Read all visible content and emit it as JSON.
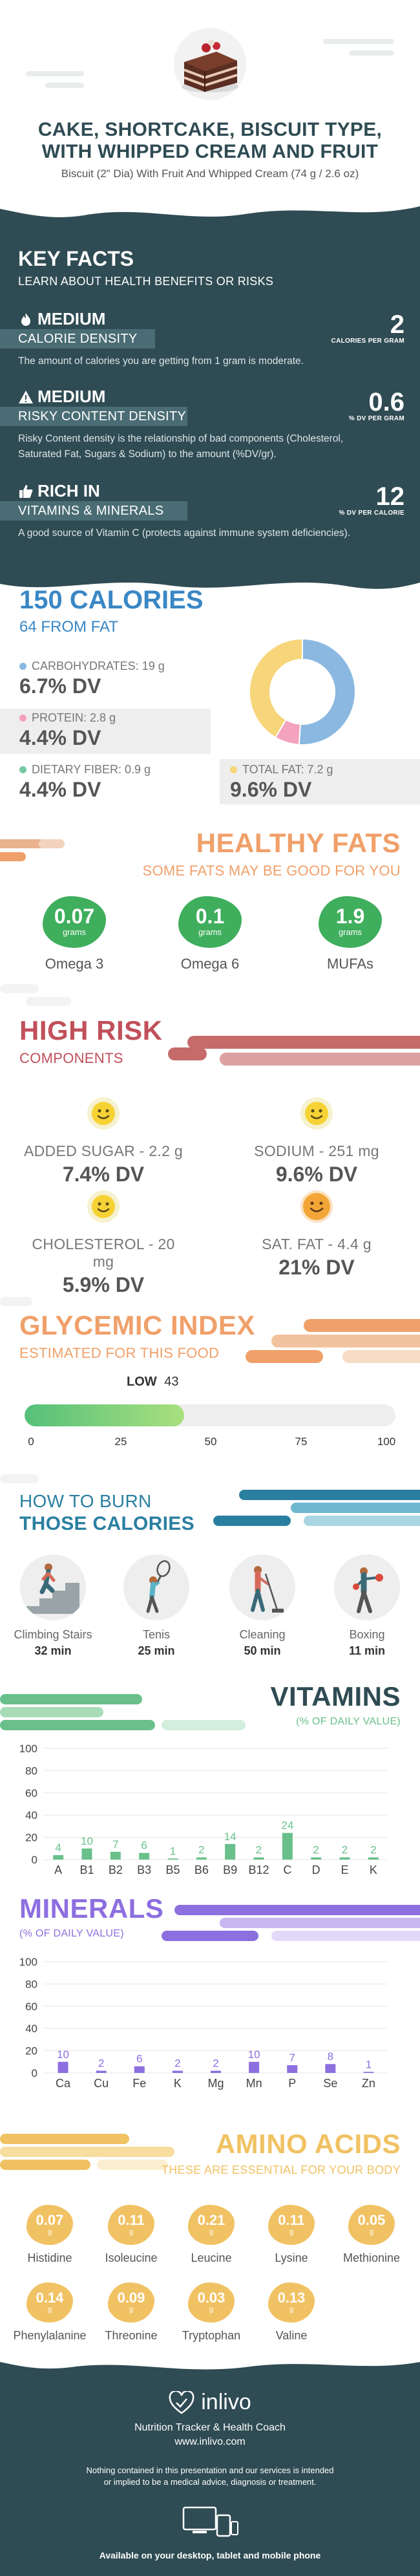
{
  "header": {
    "title_line1": "CAKE, SHORTCAKE, BISCUIT TYPE,",
    "title_line2": "WITH WHIPPED CREAM AND FRUIT",
    "subtitle": "Biscuit (2\" Dia) With Fruit And Whipped Cream (74 g / 2.6 oz)"
  },
  "key_facts": {
    "title": "KEY FACTS",
    "subtitle": "LEARN ABOUT HEALTH BENEFITS OR RISKS",
    "items": [
      {
        "level": "MEDIUM",
        "label": "CALORIE DENSITY",
        "value": "2",
        "unit": "CALORIES PER GRAM",
        "text": "The amount of calories you are getting from 1 gram is moderate.",
        "icon": "flame-icon"
      },
      {
        "level": "MEDIUM",
        "label": "RISKY CONTENT DENSITY",
        "value": "0.6",
        "unit": "% DV PER GRAM",
        "text": "Risky Content density is the relationship of bad components (Cholesterol, Saturated Fat, Sugars & Sodium) to the amount (%DV/gr).",
        "icon": "warning-icon"
      },
      {
        "level": "RICH  IN",
        "label": "VITAMINS & MINERALS",
        "value": "12",
        "unit": "% DV PER CALORIE",
        "text": "A good source of Vitamin C (protects against immune system deficiencies).",
        "icon": "thumbs-up-icon"
      }
    ]
  },
  "calories": {
    "title": "150 CALORIES",
    "subtitle": "64 FROM FAT",
    "nutrients": [
      {
        "label": "CARBOHYDRATES: 19 g",
        "dv": "6.7% DV",
        "color": "#8ab8e0"
      },
      {
        "label": "PROTEIN: 2.8 g",
        "dv": "4.4% DV",
        "color": "#f4a3bf"
      },
      {
        "label": "DIETARY FIBER: 0.9 g",
        "dv": "4.4% DV",
        "color": "#76c8a3"
      },
      {
        "label": "TOTAL FAT: 7.2 g",
        "dv": "9.6% DV",
        "color": "#f7d57a"
      }
    ],
    "donut_fractions": [
      0.51,
      0.075,
      0.415
    ],
    "donut_colors": [
      "#8ab8e0",
      "#f4a3bf",
      "#f7d57a"
    ]
  },
  "healthy_fats": {
    "title": "HEALTHY FATS",
    "subtitle": "SOME FATS MAY BE GOOD FOR YOU",
    "unit": "grams",
    "items": [
      {
        "value": "0.07",
        "name": "Omega 3"
      },
      {
        "value": "0.1",
        "name": "Omega 6"
      },
      {
        "value": "1.9",
        "name": "MUFAs"
      }
    ]
  },
  "high_risk": {
    "title": "HIGH RISK",
    "subtitle": "COMPONENTS",
    "items": [
      {
        "label": "ADDED SUGAR - 2.2 g",
        "dv": "7.4% DV",
        "face": "yellow"
      },
      {
        "label": "SODIUM - 251 mg",
        "dv": "9.6% DV",
        "face": "yellow"
      },
      {
        "label": "CHOLESTEROL - 20 mg",
        "dv": "5.9% DV",
        "face": "yellow"
      },
      {
        "label": "SAT. FAT - 4.4 g",
        "dv": "21% DV",
        "face": "orange"
      }
    ]
  },
  "glycemic": {
    "title": "GLYCEMIC INDEX",
    "subtitle": "ESTIMATED FOR THIS FOOD",
    "level": "LOW",
    "value": "43",
    "fill_fraction": 0.43,
    "ticks": [
      "0",
      "25",
      "50",
      "75",
      "100"
    ]
  },
  "burn": {
    "title_line1": "HOW TO BURN",
    "title_line2": "THOSE CALORIES",
    "items": [
      {
        "activity": "Climbing Stairs",
        "minutes": "32 min",
        "icon": "stairs-icon"
      },
      {
        "activity": "Tenis",
        "minutes": "25 min",
        "icon": "tennis-icon"
      },
      {
        "activity": "Cleaning",
        "minutes": "50 min",
        "icon": "cleaning-icon"
      },
      {
        "activity": "Boxing",
        "minutes": "11 min",
        "icon": "boxing-icon"
      }
    ]
  },
  "vitamins": {
    "title": "VITAMINS",
    "subtitle": "(% OF DAILY VALUE)",
    "color": "#69c08a"
  },
  "minerals": {
    "title": "MINERALS",
    "subtitle": "(% OF DAILY VALUE)",
    "color": "#8d6fe0"
  },
  "chart_data": [
    {
      "type": "bar",
      "title": "VITAMINS",
      "categories": [
        "A",
        "B1",
        "B2",
        "B3",
        "B5",
        "B6",
        "B9",
        "B12",
        "C",
        "D",
        "E",
        "K"
      ],
      "values": [
        4,
        10,
        7,
        6,
        1,
        2,
        14,
        2,
        24,
        2,
        2,
        2
      ],
      "yticks": [
        "0",
        "20",
        "40",
        "60",
        "80",
        "100"
      ],
      "ylim": [
        0,
        100
      ],
      "grid": true
    },
    {
      "type": "bar",
      "title": "MINERALS",
      "categories": [
        "Ca",
        "Cu",
        "Fe",
        "K",
        "Mg",
        "Mn",
        "P",
        "Se",
        "Zn"
      ],
      "values": [
        10,
        2,
        6,
        2,
        2,
        10,
        7,
        8,
        1
      ],
      "yticks": [
        "0",
        "20",
        "40",
        "60",
        "80",
        "100"
      ],
      "ylim": [
        0,
        100
      ],
      "grid": true
    }
  ],
  "amino": {
    "title": "AMINO ACIDS",
    "subtitle": "THESE ARE ESSENTIAL FOR YOUR BODY",
    "unit": "g",
    "items": [
      {
        "value": "0.07",
        "name": "Histidine"
      },
      {
        "value": "0.11",
        "name": "Isoleucine"
      },
      {
        "value": "0.21",
        "name": "Leucine"
      },
      {
        "value": "0.11",
        "name": "Lysine"
      },
      {
        "value": "0.05",
        "name": "Methionine"
      },
      {
        "value": "0.14",
        "name": "Phenylalanine"
      },
      {
        "value": "0.09",
        "name": "Threonine"
      },
      {
        "value": "0.03",
        "name": "Tryptophan"
      },
      {
        "value": "0.13",
        "name": "Valine"
      }
    ]
  },
  "footer": {
    "brand": "inlivo",
    "tagline": "Nutrition Tracker & Health Coach",
    "site": "www.inlivo.com",
    "disclaimer": "Nothing contained in this presentation and our services is intended or implied to be a medical advice, diagnosis or treatment.",
    "available": "Available on your desktop, tablet and mobile phone"
  },
  "colors": {
    "dark_teal": "#2f4b53",
    "calorie_blue": "#3a87c5",
    "fats_orange": "#f0a06a",
    "risk_red": "#c0505a",
    "glycemic_orange": "#f0a06a",
    "burn_teal": "#2a7fa0",
    "vitamin_green": "#69c08a",
    "mineral_purple": "#8d6fe0",
    "amino_gold": "#f1c263"
  }
}
